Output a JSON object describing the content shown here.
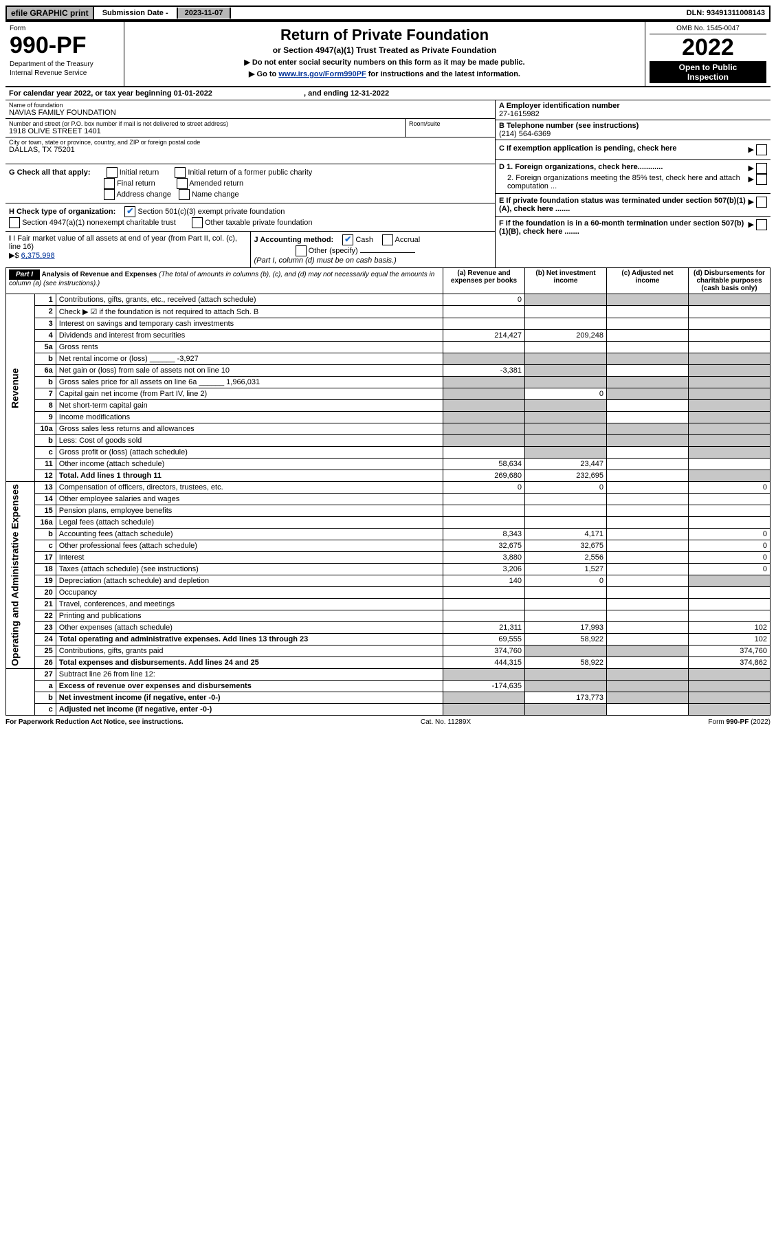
{
  "topbar": {
    "efile": "efile GRAPHIC print",
    "subdate_label": "Submission Date - ",
    "subdate": "2023-11-07",
    "dln_label": "DLN: ",
    "dln": "93491311008143"
  },
  "header": {
    "form_word": "Form",
    "form_no": "990-PF",
    "dept": "Department of the Treasury",
    "irs": "Internal Revenue Service",
    "title": "Return of Private Foundation",
    "subtitle": "or Section 4947(a)(1) Trust Treated as Private Foundation",
    "warn": "▶ Do not enter social security numbers on this form as it may be made public.",
    "goto_pre": "▶ Go to ",
    "goto_link": "www.irs.gov/Form990PF",
    "goto_post": " for instructions and the latest information.",
    "omb": "OMB No. 1545-0047",
    "year": "2022",
    "inspect1": "Open to Public",
    "inspect2": "Inspection"
  },
  "calline": {
    "pre": "For calendar year 2022, or tax year beginning ",
    "begin": "01-01-2022",
    "mid": " , and ending ",
    "end": "12-31-2022"
  },
  "info": {
    "name_label": "Name of foundation",
    "name": "NAVIAS FAMILY FOUNDATION",
    "addr_label": "Number and street (or P.O. box number if mail is not delivered to street address)",
    "addr": "1918 OLIVE STREET 1401",
    "room_label": "Room/suite",
    "city_label": "City or town, state or province, country, and ZIP or foreign postal code",
    "city": "DALLAS, TX  75201",
    "ein_label": "A Employer identification number",
    "ein": "27-1615982",
    "tel_label": "B Telephone number (see instructions)",
    "tel": "(214) 564-6369",
    "C": "C If exemption application is pending, check here",
    "D1": "D 1. Foreign organizations, check here............",
    "D2": "2. Foreign organizations meeting the 85% test, check here and attach computation ...",
    "E": "E If private foundation status was terminated under section 507(b)(1)(A), check here .......",
    "F": "F If the foundation is in a 60-month termination under section 507(b)(1)(B), check here .......",
    "G_label": "G Check all that apply:",
    "G": {
      "initial": "Initial return",
      "initial_former": "Initial return of a former public charity",
      "final": "Final return",
      "amended": "Amended return",
      "address": "Address change",
      "name": "Name change"
    },
    "H_label": "H Check type of organization:",
    "H": {
      "s501": "Section 501(c)(3) exempt private foundation",
      "s4947": "Section 4947(a)(1) nonexempt charitable trust",
      "other": "Other taxable private foundation"
    },
    "I_label": "I Fair market value of all assets at end of year (from Part II, col. (c), line 16) ",
    "I_arrow": "▶$ ",
    "I_val": "6,375,998",
    "J_label": "J Accounting method:",
    "J_cash": "Cash",
    "J_accrual": "Accrual",
    "J_other": "Other (specify)",
    "J_note": "(Part I, column (d) must be on cash basis.)"
  },
  "part1": {
    "label": "Part I",
    "title": "Analysis of Revenue and Expenses ",
    "title_note": "(The total of amounts in columns (b), (c), and (d) may not necessarily equal the amounts in column (a) (see instructions).)",
    "col_a": "(a) Revenue and expenses per books",
    "col_b": "(b) Net investment income",
    "col_c": "(c) Adjusted net income",
    "col_d": "(d) Disbursements for charitable purposes (cash basis only)",
    "revenue_label": "Revenue",
    "expenses_label": "Operating and Administrative Expenses",
    "rows": [
      {
        "n": "1",
        "label": "Contributions, gifts, grants, etc., received (attach schedule)",
        "a": "0",
        "bgrey": true,
        "cgrey": true,
        "dgrey": true
      },
      {
        "n": "2",
        "label": "Check ▶ ☑ if the foundation is not required to attach Sch. B",
        "span": true
      },
      {
        "n": "3",
        "label": "Interest on savings and temporary cash investments"
      },
      {
        "n": "4",
        "label": "Dividends and interest from securities",
        "a": "214,427",
        "b": "209,248"
      },
      {
        "n": "5a",
        "label": "Gross rents"
      },
      {
        "n": "b",
        "label": "Net rental income or (loss)",
        "inline_val": "-3,927",
        "bgrey": true,
        "cgrey": true,
        "dgrey": true,
        "agrey": true
      },
      {
        "n": "6a",
        "label": "Net gain or (loss) from sale of assets not on line 10",
        "a": "-3,381",
        "bgrey": true,
        "dgrey": true
      },
      {
        "n": "b",
        "label": "Gross sales price for all assets on line 6a",
        "inline_val": "1,966,031",
        "allgrey": true
      },
      {
        "n": "7",
        "label": "Capital gain net income (from Part IV, line 2)",
        "b": "0",
        "agrey": true,
        "cgrey": true,
        "dgrey": true
      },
      {
        "n": "8",
        "label": "Net short-term capital gain",
        "agrey": true,
        "bgrey": true,
        "dgrey": true
      },
      {
        "n": "9",
        "label": "Income modifications",
        "agrey": true,
        "bgrey": true,
        "dgrey": true
      },
      {
        "n": "10a",
        "label": "Gross sales less returns and allowances",
        "allgrey": true
      },
      {
        "n": "b",
        "label": "Less: Cost of goods sold",
        "allgrey": true
      },
      {
        "n": "c",
        "label": "Gross profit or (loss) (attach schedule)",
        "bgrey": true,
        "dgrey": true
      },
      {
        "n": "11",
        "label": "Other income (attach schedule)",
        "a": "58,634",
        "b": "23,447"
      },
      {
        "n": "12",
        "label": "Total. Add lines 1 through 11",
        "a": "269,680",
        "b": "232,695",
        "bold": true,
        "dgrey": true
      }
    ],
    "exp_rows": [
      {
        "n": "13",
        "label": "Compensation of officers, directors, trustees, etc.",
        "a": "0",
        "b": "0",
        "d": "0"
      },
      {
        "n": "14",
        "label": "Other employee salaries and wages"
      },
      {
        "n": "15",
        "label": "Pension plans, employee benefits"
      },
      {
        "n": "16a",
        "label": "Legal fees (attach schedule)"
      },
      {
        "n": "b",
        "label": "Accounting fees (attach schedule)",
        "a": "8,343",
        "b": "4,171",
        "d": "0"
      },
      {
        "n": "c",
        "label": "Other professional fees (attach schedule)",
        "a": "32,675",
        "b": "32,675",
        "d": "0"
      },
      {
        "n": "17",
        "label": "Interest",
        "a": "3,880",
        "b": "2,556",
        "d": "0"
      },
      {
        "n": "18",
        "label": "Taxes (attach schedule) (see instructions)",
        "a": "3,206",
        "b": "1,527",
        "d": "0"
      },
      {
        "n": "19",
        "label": "Depreciation (attach schedule) and depletion",
        "a": "140",
        "b": "0",
        "dgrey": true
      },
      {
        "n": "20",
        "label": "Occupancy"
      },
      {
        "n": "21",
        "label": "Travel, conferences, and meetings"
      },
      {
        "n": "22",
        "label": "Printing and publications"
      },
      {
        "n": "23",
        "label": "Other expenses (attach schedule)",
        "a": "21,311",
        "b": "17,993",
        "d": "102"
      },
      {
        "n": "24",
        "label": "Total operating and administrative expenses. Add lines 13 through 23",
        "a": "69,555",
        "b": "58,922",
        "d": "102",
        "bold": true
      },
      {
        "n": "25",
        "label": "Contributions, gifts, grants paid",
        "a": "374,760",
        "d": "374,760",
        "bgrey": true,
        "cgrey": true
      },
      {
        "n": "26",
        "label": "Total expenses and disbursements. Add lines 24 and 25",
        "a": "444,315",
        "b": "58,922",
        "d": "374,862",
        "bold": true
      }
    ],
    "bottom_rows": [
      {
        "n": "27",
        "label": "Subtract line 26 from line 12:",
        "allgrey": true
      },
      {
        "n": "a",
        "label": "Excess of revenue over expenses and disbursements",
        "a": "-174,635",
        "bold": true,
        "bgrey": true,
        "cgrey": true,
        "dgrey": true
      },
      {
        "n": "b",
        "label": "Net investment income (if negative, enter -0-)",
        "b": "173,773",
        "bold": true,
        "agrey": true,
        "cgrey": true,
        "dgrey": true
      },
      {
        "n": "c",
        "label": "Adjusted net income (if negative, enter -0-)",
        "bold": true,
        "agrey": true,
        "bgrey": true,
        "dgrey": true
      }
    ]
  },
  "footer": {
    "left": "For Paperwork Reduction Act Notice, see instructions.",
    "mid": "Cat. No. 11289X",
    "right": "Form 990-PF (2022)"
  }
}
